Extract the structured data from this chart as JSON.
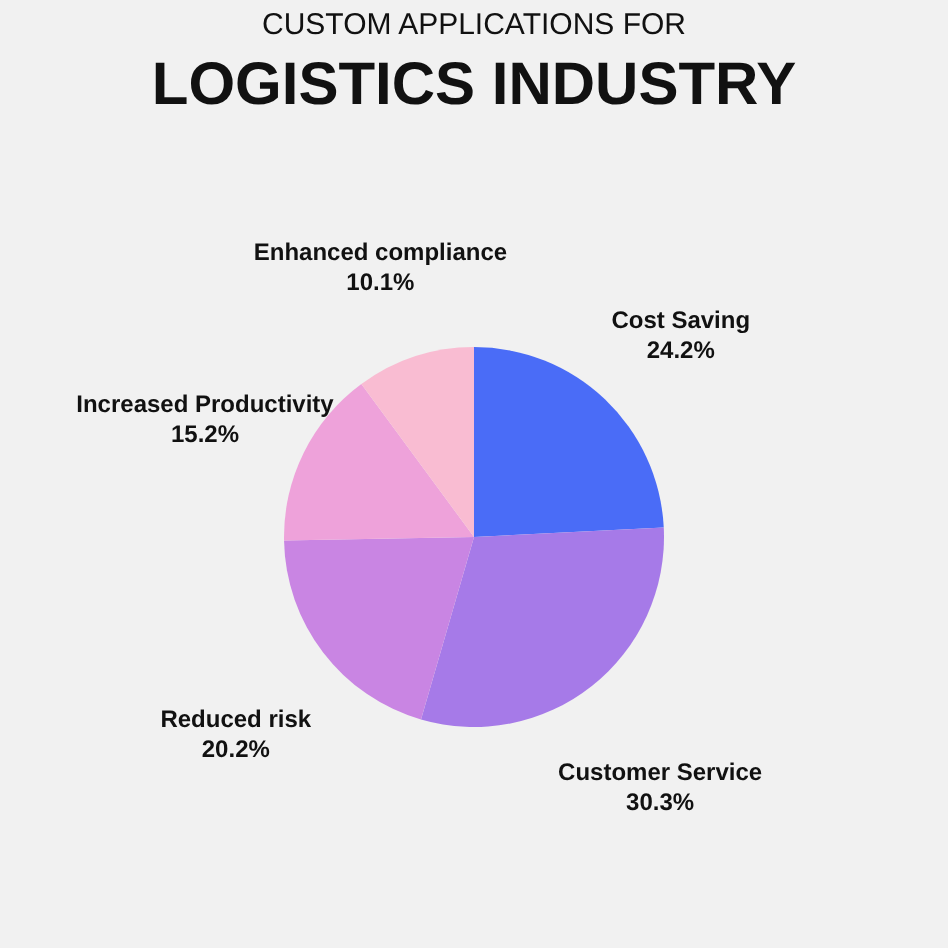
{
  "chart_data": {
    "type": "pie",
    "title": "CUSTOM APPLICATIONS FOR",
    "subtitle": "LOGISTICS INDUSTRY",
    "categories": [
      "Cost Saving",
      "Customer Service",
      "Reduced risk",
      "Increased Productivity",
      "Enhanced compliance"
    ],
    "values": [
      24.2,
      30.3,
      20.2,
      15.2,
      10.1
    ],
    "value_labels": [
      "24.2%",
      "30.3%",
      "20.2%",
      "15.2%",
      "10.1%"
    ],
    "colors": [
      "#4a6cf7",
      "#a67ae8",
      "#c985e3",
      "#eea2da",
      "#f9bcd2"
    ],
    "legend": false
  }
}
